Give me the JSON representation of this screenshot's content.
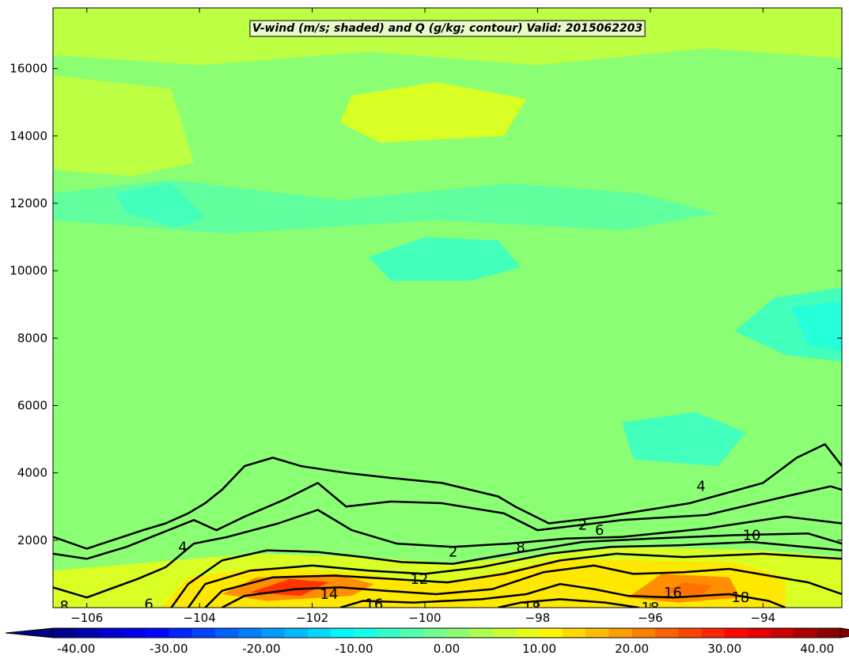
{
  "chart_data": {
    "type": "heatmap",
    "title": "V-wind (m/s; shaded) and Q (g/kg; contour) Valid: 2015062203",
    "xlabel": "",
    "ylabel": "",
    "xlim": [
      -106.6,
      -92.6
    ],
    "ylim": [
      0,
      17800
    ],
    "x_ticks": [
      {
        "value": -106,
        "label": "−106"
      },
      {
        "value": -104,
        "label": "−104"
      },
      {
        "value": -102,
        "label": "−102"
      },
      {
        "value": -100,
        "label": "−100"
      },
      {
        "value": -98,
        "label": "−98"
      },
      {
        "value": -96,
        "label": "−96"
      },
      {
        "value": -94,
        "label": "−94"
      }
    ],
    "y_ticks": [
      {
        "value": 2000,
        "label": "2000"
      },
      {
        "value": 4000,
        "label": "4000"
      },
      {
        "value": 6000,
        "label": "6000"
      },
      {
        "value": 8000,
        "label": "8000"
      },
      {
        "value": 10000,
        "label": "10000"
      },
      {
        "value": 12000,
        "label": "12000"
      },
      {
        "value": 14000,
        "label": "14000"
      },
      {
        "value": 16000,
        "label": "16000"
      }
    ],
    "colorbar": {
      "min": -42.5,
      "max": 42.5,
      "step": 2.5,
      "orientation": "horizontal",
      "extend": "both",
      "ticks": [
        {
          "value": -40,
          "label": "-40.00"
        },
        {
          "value": -30,
          "label": "-30.00"
        },
        {
          "value": -20,
          "label": "-20.00"
        },
        {
          "value": -10,
          "label": "-10.00"
        },
        {
          "value": 0,
          "label": "0.00"
        },
        {
          "value": 10,
          "label": "10.00"
        },
        {
          "value": 20,
          "label": "20.00"
        },
        {
          "value": 30,
          "label": "30.00"
        },
        {
          "value": 40,
          "label": "40.00"
        }
      ]
    },
    "shaded_regions": [
      {
        "name": "background",
        "v": 1,
        "poly": [
          [
            -106.6,
            0
          ],
          [
            -92.6,
            0
          ],
          [
            -92.6,
            17800
          ],
          [
            -106.6,
            17800
          ]
        ]
      },
      {
        "name": "upper-warm-band",
        "v": 5,
        "poly": [
          [
            -106.6,
            17800
          ],
          [
            -92.6,
            17800
          ],
          [
            -92.6,
            16300
          ],
          [
            -95,
            16600
          ],
          [
            -98,
            16100
          ],
          [
            -101,
            16500
          ],
          [
            -104,
            16100
          ],
          [
            -106.6,
            16400
          ]
        ]
      },
      {
        "name": "left-warm-band",
        "v": 5,
        "poly": [
          [
            -106.6,
            15800
          ],
          [
            -104.5,
            15400
          ],
          [
            -104.1,
            13200
          ],
          [
            -105.2,
            12800
          ],
          [
            -106.6,
            13000
          ]
        ]
      },
      {
        "name": "jet-core-north",
        "v": 7.5,
        "poly": [
          [
            -101.3,
            15200
          ],
          [
            -99.8,
            15600
          ],
          [
            -98.2,
            15100
          ],
          [
            -98.6,
            14000
          ],
          [
            -100.8,
            13800
          ],
          [
            -101.5,
            14400
          ]
        ]
      },
      {
        "name": "mid-cool-band",
        "v": -2.5,
        "poly": [
          [
            -106.6,
            12300
          ],
          [
            -104.5,
            12700
          ],
          [
            -101.5,
            12100
          ],
          [
            -98.5,
            12600
          ],
          [
            -96.2,
            12300
          ],
          [
            -94.8,
            11700
          ],
          [
            -96.5,
            11200
          ],
          [
            -99.8,
            11500
          ],
          [
            -103.5,
            11100
          ],
          [
            -106.6,
            11500
          ]
        ]
      },
      {
        "name": "west-cool-pocket",
        "v": -5,
        "poly": [
          [
            -105.5,
            12300
          ],
          [
            -104.5,
            12600
          ],
          [
            -103.9,
            11600
          ],
          [
            -104.4,
            11300
          ],
          [
            -105.3,
            11700
          ]
        ]
      },
      {
        "name": "central-cool-pocket",
        "v": -5,
        "poly": [
          [
            -101,
            10400
          ],
          [
            -100,
            11000
          ],
          [
            -98.7,
            10900
          ],
          [
            -98.3,
            10100
          ],
          [
            -99.2,
            9700
          ],
          [
            -100.6,
            9700
          ]
        ]
      },
      {
        "name": "east-cool-pocket",
        "v": -5,
        "poly": [
          [
            -93.8,
            9200
          ],
          [
            -92.6,
            9500
          ],
          [
            -92.6,
            7300
          ],
          [
            -93.6,
            7500
          ],
          [
            -94.5,
            8200
          ]
        ]
      },
      {
        "name": "east-cool-core",
        "v": -7.5,
        "poly": [
          [
            -93.5,
            8900
          ],
          [
            -92.6,
            9100
          ],
          [
            -92.6,
            7600
          ],
          [
            -93.2,
            7800
          ]
        ]
      },
      {
        "name": "south-cool-pocket",
        "v": -5,
        "poly": [
          [
            -96.5,
            5500
          ],
          [
            -95.2,
            5800
          ],
          [
            -94.3,
            5200
          ],
          [
            -94.8,
            4200
          ],
          [
            -96.3,
            4400
          ]
        ]
      },
      {
        "name": "boundary-layer-warm",
        "v": 7.5,
        "poly": [
          [
            -106.6,
            1100
          ],
          [
            -104.5,
            1400
          ],
          [
            -103,
            1600
          ],
          [
            -101,
            1500
          ],
          [
            -99.5,
            1300
          ],
          [
            -98,
            1550
          ],
          [
            -96.5,
            1800
          ],
          [
            -94,
            1700
          ],
          [
            -92.6,
            1500
          ],
          [
            -92.6,
            0
          ],
          [
            -106.6,
            0
          ]
        ]
      },
      {
        "name": "boundary-layer-hot",
        "v": 12.5,
        "poly": [
          [
            -104.7,
            0
          ],
          [
            -104.2,
            900
          ],
          [
            -102.8,
            1200
          ],
          [
            -101,
            1000
          ],
          [
            -100,
            700
          ],
          [
            -99,
            950
          ],
          [
            -97.6,
            1450
          ],
          [
            -96.3,
            1400
          ],
          [
            -94.5,
            1350
          ],
          [
            -93.6,
            900
          ],
          [
            -93.6,
            0
          ]
        ]
      },
      {
        "name": "low-jet-west",
        "v": 20,
        "poly": [
          [
            -103.6,
            400
          ],
          [
            -103,
            900
          ],
          [
            -101.5,
            950
          ],
          [
            -100.9,
            700
          ],
          [
            -101.3,
            350
          ],
          [
            -102.8,
            200
          ]
        ]
      },
      {
        "name": "low-jet-west-core",
        "v": 27.5,
        "poly": [
          [
            -103.1,
            450
          ],
          [
            -102.4,
            850
          ],
          [
            -101.7,
            750
          ],
          [
            -102.2,
            350
          ]
        ]
      },
      {
        "name": "low-jet-east",
        "v": 20,
        "poly": [
          [
            -96.4,
            300
          ],
          [
            -95.8,
            1000
          ],
          [
            -94.6,
            900
          ],
          [
            -94.4,
            300
          ],
          [
            -95.5,
            150
          ]
        ]
      },
      {
        "name": "low-jet-east-core",
        "v": 22.5,
        "poly": [
          [
            -95.8,
            450
          ],
          [
            -95.4,
            750
          ],
          [
            -94.9,
            650
          ],
          [
            -95.1,
            350
          ]
        ]
      }
    ],
    "contours": [
      {
        "level": 2,
        "points": [
          [
            -106.6,
            2100
          ],
          [
            -106,
            1750
          ],
          [
            -105,
            2300
          ],
          [
            -104.6,
            2500
          ],
          [
            -104.2,
            2800
          ],
          [
            -103.9,
            3100
          ],
          [
            -103.6,
            3500
          ],
          [
            -103.2,
            4200
          ],
          [
            -102.7,
            4450
          ],
          [
            -102.2,
            4200
          ],
          [
            -101.4,
            4000
          ],
          [
            -100.6,
            3850
          ],
          [
            -99.7,
            3700
          ],
          [
            -98.7,
            3300
          ],
          [
            -98.4,
            3000
          ],
          [
            -97.8,
            2500
          ],
          [
            -96.8,
            2700
          ],
          [
            -95.3,
            3100
          ],
          [
            -94,
            3700
          ],
          [
            -93.4,
            4450
          ],
          [
            -92.9,
            4850
          ],
          [
            -92.6,
            4200
          ]
        ]
      },
      {
        "level": 4,
        "points": [
          [
            -106.6,
            1600
          ],
          [
            -106,
            1450
          ],
          [
            -105.3,
            1800
          ],
          [
            -104.7,
            2200
          ],
          [
            -104.1,
            2600
          ],
          [
            -103.7,
            2300
          ],
          [
            -103.2,
            2700
          ],
          [
            -102.5,
            3200
          ],
          [
            -101.9,
            3700
          ],
          [
            -101.4,
            3000
          ],
          [
            -100.6,
            3150
          ],
          [
            -99.7,
            3100
          ],
          [
            -98.6,
            2800
          ],
          [
            -98,
            2300
          ],
          [
            -96.5,
            2600
          ],
          [
            -95,
            2750
          ],
          [
            -93.6,
            3300
          ],
          [
            -92.8,
            3600
          ],
          [
            -92.6,
            3500
          ]
        ]
      },
      {
        "level": 6,
        "points": [
          [
            -106.6,
            600
          ],
          [
            -106,
            300
          ],
          [
            -105.1,
            850
          ],
          [
            -104.6,
            1200
          ],
          [
            -104.1,
            1900
          ],
          [
            -103.5,
            2100
          ],
          [
            -102.6,
            2500
          ],
          [
            -101.9,
            2900
          ],
          [
            -101.3,
            2300
          ],
          [
            -100.5,
            1900
          ],
          [
            -99.5,
            1800
          ],
          [
            -98.5,
            1900
          ],
          [
            -97.5,
            2050
          ],
          [
            -96.5,
            2100
          ],
          [
            -95,
            2350
          ],
          [
            -93.6,
            2700
          ],
          [
            -92.6,
            2500
          ]
        ]
      },
      {
        "level": 8,
        "points": [
          [
            -104.5,
            0
          ],
          [
            -104.2,
            700
          ],
          [
            -103.6,
            1400
          ],
          [
            -102.8,
            1700
          ],
          [
            -101.9,
            1650
          ],
          [
            -101.1,
            1500
          ],
          [
            -100.4,
            1350
          ],
          [
            -99.5,
            1300
          ],
          [
            -98.3,
            1650
          ],
          [
            -97.2,
            1950
          ],
          [
            -96,
            2050
          ],
          [
            -94.5,
            2150
          ],
          [
            -93.2,
            2200
          ],
          [
            -92.6,
            1900
          ]
        ]
      },
      {
        "level": 10,
        "points": [
          [
            -104.2,
            0
          ],
          [
            -103.9,
            700
          ],
          [
            -103.1,
            1100
          ],
          [
            -102,
            1250
          ],
          [
            -101,
            1100
          ],
          [
            -100,
            1000
          ],
          [
            -99,
            1200
          ],
          [
            -97.8,
            1600
          ],
          [
            -96.7,
            1800
          ],
          [
            -95.5,
            1850
          ],
          [
            -94.2,
            1950
          ],
          [
            -92.6,
            1700
          ]
        ]
      },
      {
        "level": 12,
        "points": [
          [
            -103.9,
            0
          ],
          [
            -103.6,
            500
          ],
          [
            -102.7,
            900
          ],
          [
            -101.6,
            950
          ],
          [
            -100.6,
            850
          ],
          [
            -99.6,
            750
          ],
          [
            -98.6,
            1000
          ],
          [
            -97.6,
            1400
          ],
          [
            -96.6,
            1600
          ],
          [
            -95.4,
            1500
          ],
          [
            -94,
            1600
          ],
          [
            -92.6,
            1450
          ]
        ]
      },
      {
        "level": 14,
        "points": [
          [
            -103.6,
            0
          ],
          [
            -103.2,
            350
          ],
          [
            -102.3,
            550
          ],
          [
            -101.5,
            600
          ],
          [
            -100.7,
            500
          ],
          [
            -99.8,
            400
          ],
          [
            -98.8,
            550
          ],
          [
            -97.9,
            1050
          ],
          [
            -97,
            1250
          ],
          [
            -96.3,
            1000
          ],
          [
            -95.4,
            1050
          ],
          [
            -94.6,
            1150
          ],
          [
            -93.2,
            750
          ],
          [
            -92.6,
            400
          ]
        ]
      },
      {
        "level": 16,
        "points": [
          [
            -101.5,
            0
          ],
          [
            -101.1,
            200
          ],
          [
            -100.2,
            150
          ],
          [
            -99,
            250
          ],
          [
            -98.2,
            400
          ],
          [
            -97.6,
            700
          ],
          [
            -97,
            550
          ],
          [
            -96.4,
            350
          ],
          [
            -95.6,
            300
          ],
          [
            -94.6,
            400
          ],
          [
            -93.9,
            200
          ],
          [
            -93.6,
            0
          ]
        ]
      },
      {
        "level": 18,
        "points": [
          [
            -98.7,
            0
          ],
          [
            -98.3,
            150
          ],
          [
            -97.6,
            250
          ],
          [
            -96.8,
            150
          ],
          [
            -96.2,
            0
          ]
        ]
      }
    ],
    "contour_labels": [
      {
        "text": "2",
        "x": -97.2,
        "y": 2450
      },
      {
        "text": "2",
        "x": -99.5,
        "y": 1650
      },
      {
        "text": "4",
        "x": -95.1,
        "y": 3600
      },
      {
        "text": "4",
        "x": -104.3,
        "y": 1800
      },
      {
        "text": "6",
        "x": -96.9,
        "y": 2300
      },
      {
        "text": "6",
        "x": -104.9,
        "y": 100
      },
      {
        "text": "8",
        "x": -98.3,
        "y": 1800
      },
      {
        "text": "8",
        "x": -106.4,
        "y": 50
      },
      {
        "text": "10",
        "x": -94.2,
        "y": 2150
      },
      {
        "text": "12",
        "x": -100.1,
        "y": 850
      },
      {
        "text": "14",
        "x": -101.7,
        "y": 400
      },
      {
        "text": "16",
        "x": -100.9,
        "y": 100
      },
      {
        "text": "16",
        "x": -95.6,
        "y": 450
      },
      {
        "text": "18",
        "x": -98.1,
        "y": 0
      },
      {
        "text": "18",
        "x": -96.0,
        "y": 0
      },
      {
        "text": "18",
        "x": -94.4,
        "y": 300
      }
    ]
  }
}
